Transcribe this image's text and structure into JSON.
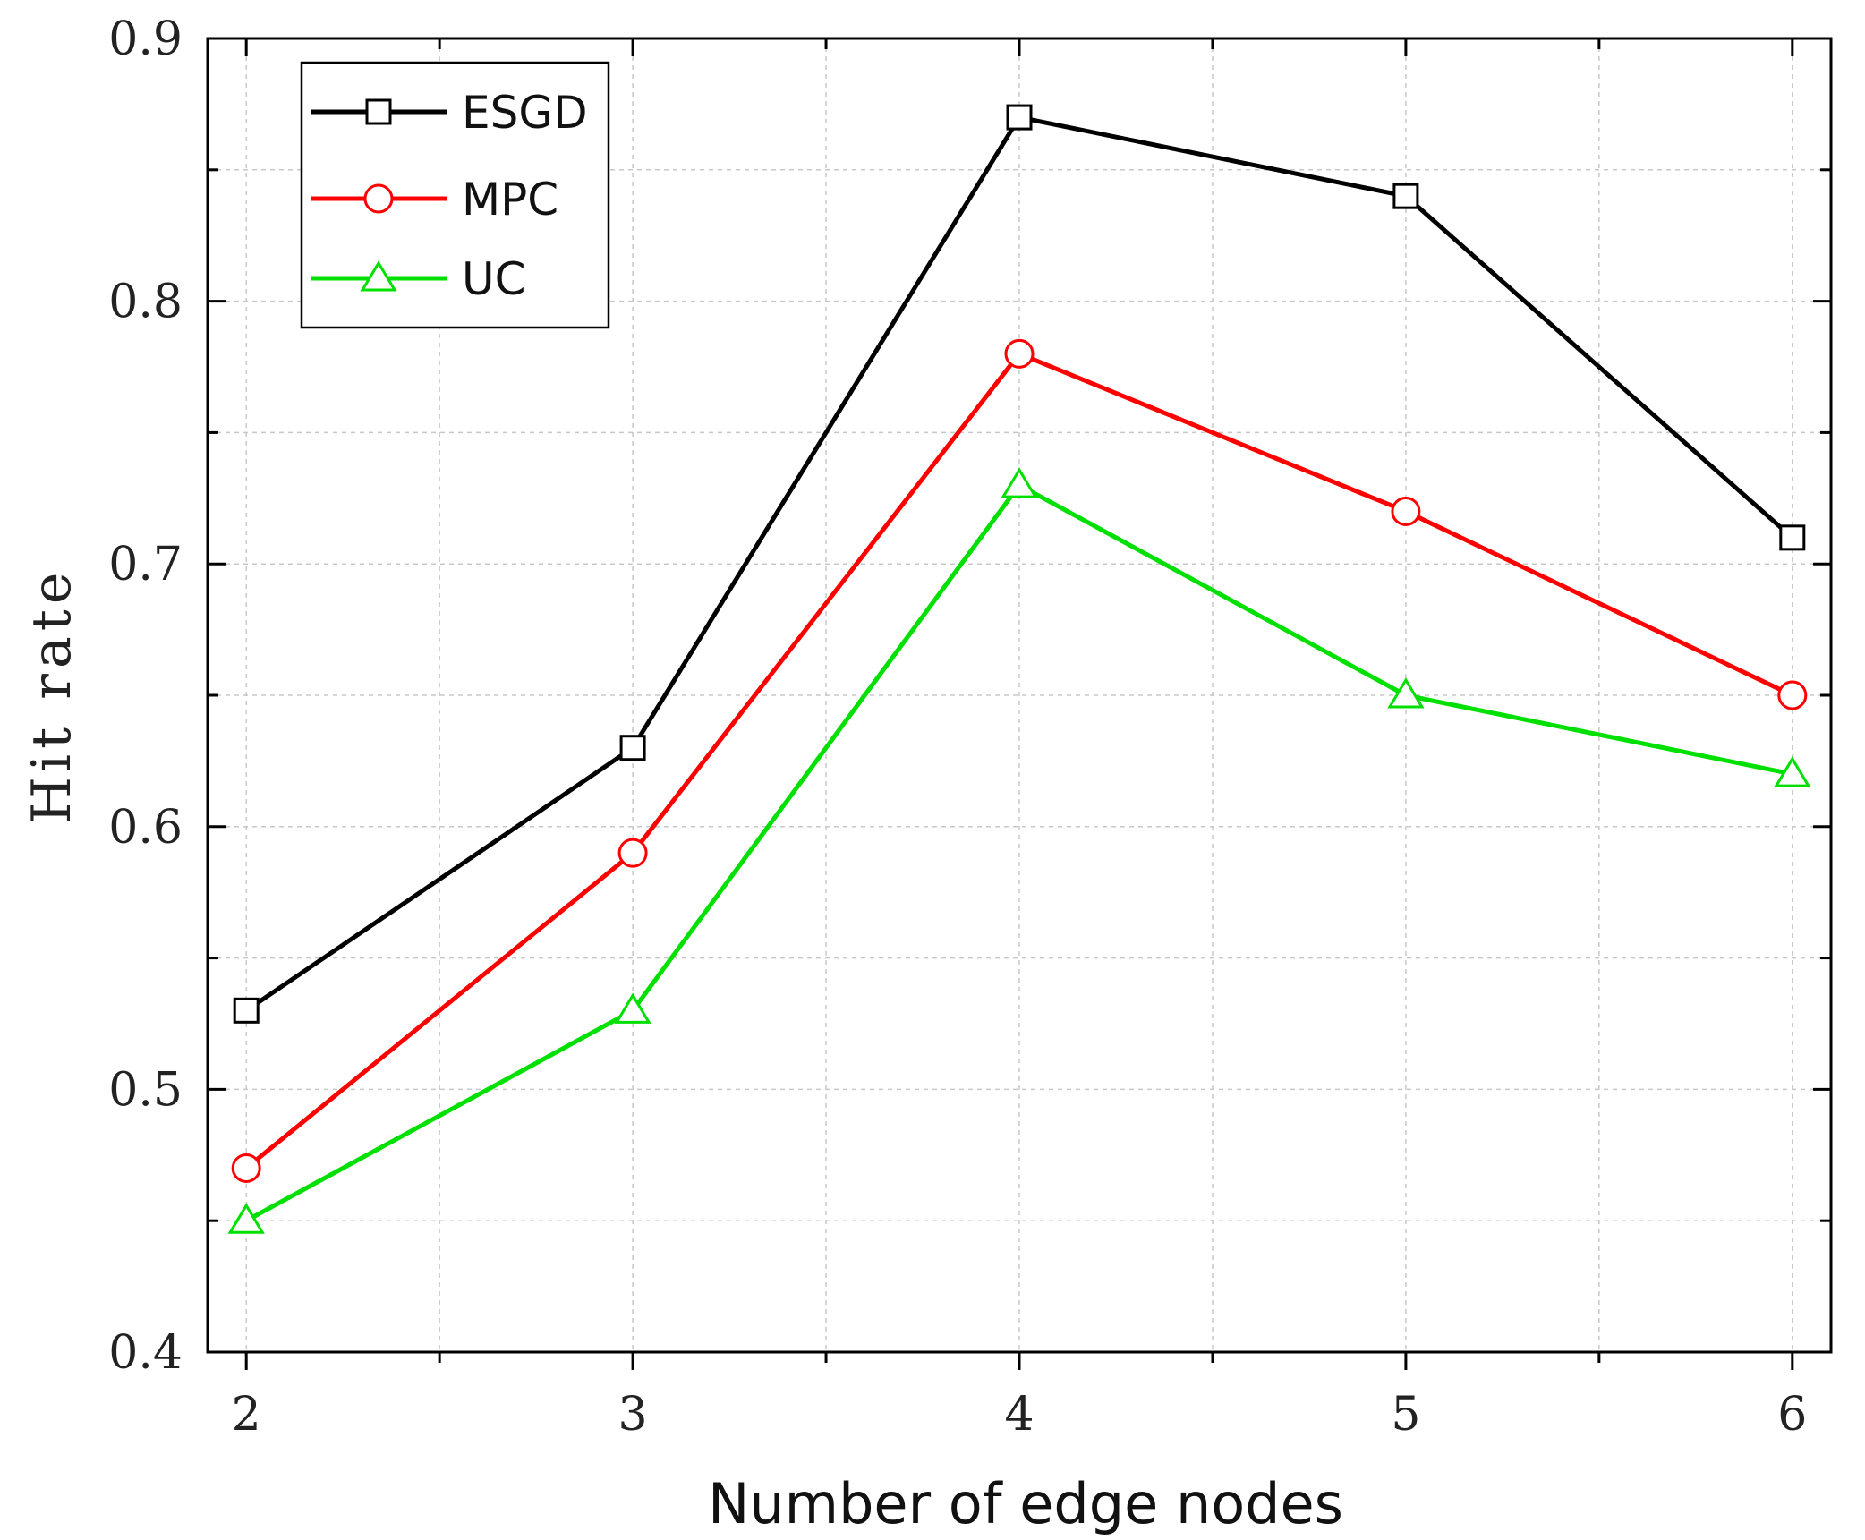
{
  "chart_data": {
    "type": "line",
    "title": "",
    "xlabel": "Number of edge nodes",
    "ylabel": "Hit rate",
    "x": [
      2,
      3,
      4,
      5,
      6
    ],
    "xlim": [
      1.9,
      6.1
    ],
    "ylim": [
      0.4,
      0.9
    ],
    "xticks": [
      "2",
      "3",
      "4",
      "5",
      "6"
    ],
    "yticks": [
      "0.4",
      "0.5",
      "0.6",
      "0.7",
      "0.8",
      "0.9"
    ],
    "grid": true,
    "legend_position": "top-left",
    "series": [
      {
        "name": "ESGD",
        "color": "#000000",
        "marker": "square",
        "values": [
          0.53,
          0.63,
          0.87,
          0.84,
          0.71
        ]
      },
      {
        "name": "MPC",
        "color": "#ff0000",
        "marker": "circle",
        "values": [
          0.47,
          0.59,
          0.78,
          0.72,
          0.65
        ]
      },
      {
        "name": "UC",
        "color": "#00e000",
        "marker": "triangle",
        "values": [
          0.45,
          0.53,
          0.73,
          0.65,
          0.62
        ]
      }
    ]
  }
}
